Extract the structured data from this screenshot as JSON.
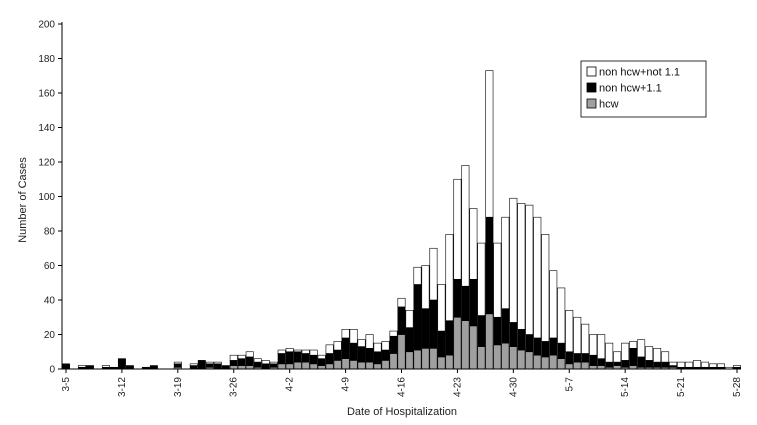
{
  "chart_data": {
    "type": "bar",
    "stacked": true,
    "xlabel": "Date of Hospitalization",
    "ylabel": "Number of Cases",
    "ylim": [
      0,
      200
    ],
    "yticks": [
      0,
      20,
      40,
      60,
      80,
      100,
      120,
      140,
      160,
      180,
      200
    ],
    "grid": false,
    "legend_position": "top-right",
    "x_tick_labels": [
      "3-5",
      "3-12",
      "3-19",
      "3-26",
      "4-2",
      "4-9",
      "4-16",
      "4-23",
      "4-30",
      "5-7",
      "5-14",
      "5-21",
      "5-28"
    ],
    "categories": [
      "3-5",
      "3-6",
      "3-7",
      "3-8",
      "3-9",
      "3-10",
      "3-11",
      "3-12",
      "3-13",
      "3-14",
      "3-15",
      "3-16",
      "3-17",
      "3-18",
      "3-19",
      "3-20",
      "3-21",
      "3-22",
      "3-23",
      "3-24",
      "3-25",
      "3-26",
      "3-27",
      "3-28",
      "3-29",
      "3-30",
      "3-31",
      "4-1",
      "4-2",
      "4-3",
      "4-4",
      "4-5",
      "4-6",
      "4-7",
      "4-8",
      "4-9",
      "4-10",
      "4-11",
      "4-12",
      "4-13",
      "4-14",
      "4-15",
      "4-16",
      "4-17",
      "4-18",
      "4-19",
      "4-20",
      "4-21",
      "4-22",
      "4-23",
      "4-24",
      "4-25",
      "4-26",
      "4-27",
      "4-28",
      "4-29",
      "4-30",
      "5-1",
      "5-2",
      "5-3",
      "5-4",
      "5-5",
      "5-6",
      "5-7",
      "5-8",
      "5-9",
      "5-10",
      "5-11",
      "5-12",
      "5-13",
      "5-14",
      "5-15",
      "5-16",
      "5-17",
      "5-18",
      "5-19",
      "5-20",
      "5-21",
      "5-22",
      "5-23",
      "5-24",
      "5-25",
      "5-26",
      "5-27",
      "5-28"
    ],
    "series": [
      {
        "name": "hcw",
        "color": "#a0a0a0",
        "values": [
          0,
          0,
          0,
          0,
          0,
          0,
          0,
          0,
          0,
          0,
          0,
          0,
          0,
          0,
          1,
          0,
          0,
          0,
          1,
          0,
          0,
          2,
          2,
          2,
          1,
          0,
          1,
          3,
          3,
          4,
          4,
          3,
          2,
          3,
          5,
          6,
          5,
          4,
          4,
          3,
          5,
          9,
          20,
          10,
          11,
          12,
          12,
          7,
          8,
          30,
          28,
          25,
          13,
          32,
          14,
          15,
          13,
          11,
          10,
          8,
          7,
          8,
          6,
          3,
          4,
          4,
          2,
          2,
          1,
          2,
          1,
          2,
          1,
          1,
          1,
          1,
          1,
          0,
          0,
          0,
          0,
          0,
          0,
          0,
          0
        ]
      },
      {
        "name": "non hcw+1.1",
        "color": "#000000",
        "values": [
          3,
          0,
          1,
          2,
          0,
          1,
          1,
          6,
          2,
          0,
          1,
          2,
          0,
          0,
          2,
          0,
          2,
          5,
          2,
          3,
          2,
          3,
          4,
          5,
          3,
          3,
          2,
          6,
          7,
          6,
          5,
          5,
          4,
          6,
          6,
          12,
          10,
          9,
          8,
          7,
          6,
          10,
          16,
          14,
          38,
          23,
          28,
          15,
          20,
          22,
          20,
          27,
          18,
          56,
          16,
          20,
          14,
          12,
          10,
          10,
          9,
          10,
          9,
          7,
          5,
          5,
          6,
          4,
          3,
          2,
          4,
          10,
          6,
          4,
          3,
          3,
          1,
          1,
          1,
          1,
          1,
          1,
          1,
          0,
          1
        ]
      },
      {
        "name": "non hcw+not 1.1",
        "color": "#ffffff",
        "values": [
          0,
          0,
          1,
          0,
          0,
          1,
          0,
          0,
          0,
          0,
          0,
          0,
          0,
          0,
          1,
          0,
          1,
          0,
          1,
          1,
          0,
          3,
          2,
          3,
          2,
          2,
          1,
          2,
          2,
          1,
          2,
          3,
          2,
          5,
          5,
          5,
          8,
          4,
          8,
          5,
          5,
          3,
          5,
          10,
          10,
          25,
          30,
          27,
          50,
          58,
          70,
          41,
          42,
          85,
          43,
          53,
          72,
          73,
          75,
          70,
          62,
          39,
          32,
          24,
          21,
          17,
          12,
          14,
          11,
          6,
          10,
          4,
          10,
          8,
          8,
          6,
          2,
          3,
          3,
          4,
          3,
          2,
          2,
          1,
          1
        ]
      }
    ]
  }
}
